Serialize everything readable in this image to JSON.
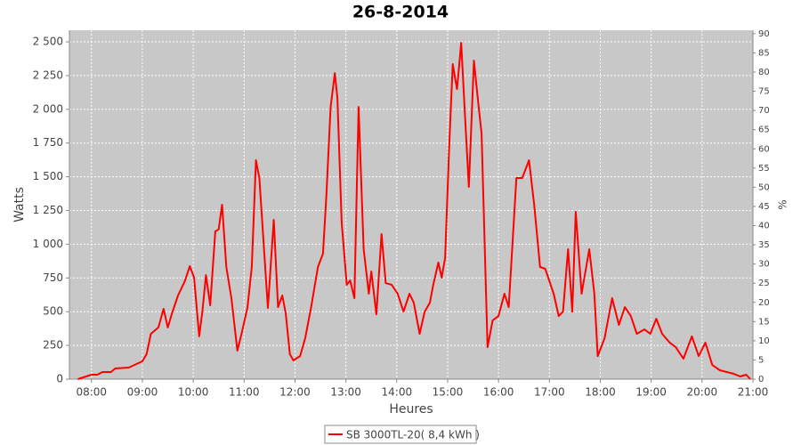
{
  "chart_data": {
    "type": "line",
    "title": "26-8-2014",
    "x_label": "Heures",
    "y_label": "Watts",
    "y2_label": "%",
    "xlim": [
      "07:34",
      "21:00"
    ],
    "xticks": [
      "08:00",
      "09:00",
      "10:00",
      "11:00",
      "12:00",
      "13:00",
      "14:00",
      "15:00",
      "16:00",
      "17:00",
      "18:00",
      "19:00",
      "20:00",
      "21:00"
    ],
    "ylim": [
      0,
      2586
    ],
    "yticks": [
      0,
      250,
      500,
      750,
      {
        "value": 1000,
        "label": "1 000"
      },
      {
        "value": 1250,
        "label": "1 250"
      },
      {
        "value": 1500,
        "label": "1 500"
      },
      {
        "value": 1750,
        "label": "1 750"
      },
      {
        "value": 2000,
        "label": "2 000"
      },
      {
        "value": 2250,
        "label": "2 250"
      },
      {
        "value": 2500,
        "label": "2 500"
      }
    ],
    "y2lim": [
      0,
      90.9
    ],
    "y2ticks": [
      0,
      5,
      10,
      15,
      20,
      25,
      30,
      35,
      40,
      45,
      50,
      55,
      60,
      65,
      70,
      75,
      80,
      85,
      90
    ],
    "grid": true,
    "legend": "bottom",
    "x": [
      "07:44",
      "08:00",
      "08:07",
      "08:13",
      "08:23",
      "08:28",
      "08:44",
      "09:00",
      "09:05",
      "09:10",
      "09:19",
      "09:25",
      "09:30",
      "09:35",
      "09:42",
      "09:50",
      "09:56",
      "10:01",
      "10:07",
      "10:11",
      "10:15",
      "10:20",
      "10:26",
      "10:30",
      "10:34",
      "10:39",
      "10:45",
      "10:52",
      "10:57",
      "11:04",
      "11:09",
      "11:14",
      "11:18",
      "11:28",
      "11:31",
      "11:35",
      "11:40",
      "11:45",
      "11:49",
      "11:54",
      "11:58",
      "12:06",
      "12:12",
      "12:19",
      "12:27",
      "12:33",
      "12:37",
      "12:42",
      "12:47",
      "12:50",
      "12:55",
      "13:01",
      "13:05",
      "13:10",
      "13:15",
      "13:21",
      "13:27",
      "13:30",
      "13:36",
      "13:42",
      "13:47",
      "13:54",
      "14:01",
      "14:08",
      "14:15",
      "14:20",
      "14:27",
      "14:33",
      "14:39",
      "14:43",
      "14:49",
      "14:53",
      "14:57",
      "15:02",
      "15:06",
      "15:11",
      "15:16",
      "15:21",
      "15:25",
      "15:31",
      "15:36",
      "15:40",
      "15:47",
      "15:53",
      "16:00",
      "16:07",
      "16:12",
      "16:21",
      "16:28",
      "16:36",
      "16:42",
      "16:49",
      "16:55",
      "17:05",
      "17:11",
      "17:16",
      "17:22",
      "17:27",
      "17:31",
      "17:38",
      "17:47",
      "17:53",
      "17:57",
      "18:05",
      "18:14",
      "18:22",
      "18:29",
      "18:36",
      "18:43",
      "18:52",
      "18:59",
      "19:06",
      "19:13",
      "19:22",
      "19:29",
      "19:38",
      "19:48",
      "19:56",
      "20:04",
      "20:12",
      "20:21",
      "20:29",
      "20:37",
      "20:45",
      "20:52",
      "20:57"
    ],
    "series": [
      {
        "name": "SB 3000TL-20( 8,4 kWh )",
        "color": "#ff0000",
        "values": [
          0,
          33,
          33,
          53,
          53,
          79,
          86,
          132,
          185,
          336,
          383,
          521,
          383,
          488,
          620,
          725,
          838,
          752,
          317,
          514,
          771,
          547,
          1095,
          1110,
          1293,
          831,
          600,
          211,
          336,
          534,
          831,
          1623,
          1491,
          528,
          805,
          1181,
          534,
          620,
          488,
          185,
          139,
          171,
          303,
          534,
          831,
          930,
          1359,
          2018,
          2269,
          2084,
          1161,
          699,
          732,
          600,
          2018,
          963,
          633,
          798,
          481,
          1075,
          712,
          699,
          633,
          501,
          633,
          567,
          336,
          501,
          567,
          699,
          864,
          752,
          897,
          1755,
          2335,
          2150,
          2493,
          1886,
          1425,
          2361,
          2051,
          1821,
          237,
          435,
          468,
          633,
          534,
          1491,
          1491,
          1623,
          1293,
          831,
          818,
          633,
          468,
          501,
          963,
          501,
          1240,
          633,
          963,
          633,
          171,
          303,
          600,
          402,
          534,
          468,
          336,
          369,
          336,
          448,
          336,
          270,
          237,
          152,
          317,
          171,
          270,
          105,
          66,
          53,
          40,
          20,
          33,
          0
        ]
      }
    ]
  }
}
